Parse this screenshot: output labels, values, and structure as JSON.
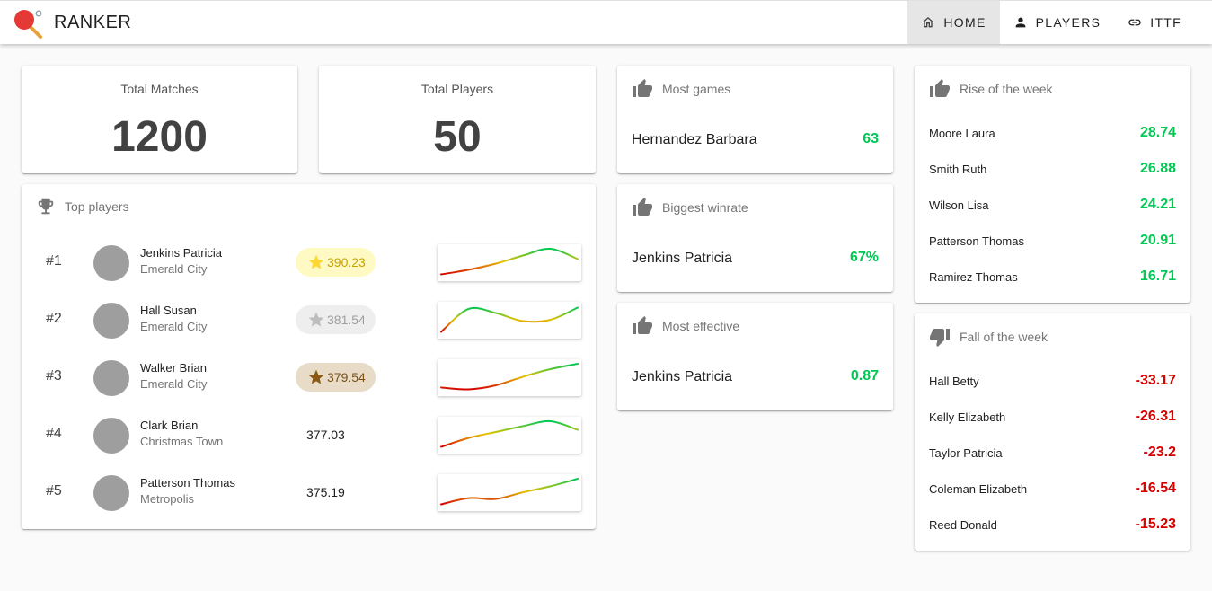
{
  "app": {
    "title": "RANKER"
  },
  "nav": [
    {
      "label": "HOME",
      "icon": "home-icon",
      "active": true
    },
    {
      "label": "PLAYERS",
      "icon": "person-icon",
      "active": false
    },
    {
      "label": "ITTF",
      "icon": "link-icon",
      "active": false
    }
  ],
  "stats": {
    "total_matches": {
      "label": "Total Matches",
      "value": "1200"
    },
    "total_players": {
      "label": "Total Players",
      "value": "50"
    }
  },
  "top_players": {
    "title": "Top players",
    "players": [
      {
        "rank": "#1",
        "name": "Jenkins Patricia",
        "city": "Emerald City",
        "score": "390.23",
        "medal": "gold",
        "trend": [
          0.05,
          0.22,
          0.45,
          0.75,
          1.0,
          0.62
        ]
      },
      {
        "rank": "#2",
        "name": "Hall Susan",
        "city": "Emerald City",
        "score": "381.54",
        "medal": "silver",
        "trend": [
          0.05,
          0.9,
          0.75,
          0.45,
          0.5,
          0.95
        ]
      },
      {
        "rank": "#3",
        "name": "Walker Brian",
        "city": "Emerald City",
        "score": "379.54",
        "medal": "bronze",
        "trend": [
          0.12,
          0.05,
          0.2,
          0.52,
          0.8,
          1.0
        ]
      },
      {
        "rank": "#4",
        "name": "Clark Brian",
        "city": "Christmas Town",
        "score": "377.03",
        "medal": "",
        "trend": [
          0.05,
          0.38,
          0.6,
          0.82,
          1.0,
          0.68
        ]
      },
      {
        "rank": "#5",
        "name": "Patterson Thomas",
        "city": "Metropolis",
        "score": "375.19",
        "medal": "",
        "trend": [
          0.05,
          0.28,
          0.25,
          0.5,
          0.72,
          1.0
        ]
      }
    ]
  },
  "awards": [
    {
      "title": "Most games",
      "player": "Hernandez Barbara",
      "value": "63"
    },
    {
      "title": "Biggest winrate",
      "player": "Jenkins Patricia",
      "value": "67%"
    },
    {
      "title": "Most effective",
      "player": "Jenkins Patricia",
      "value": "0.87"
    }
  ],
  "rise": {
    "title": "Rise of the week",
    "rows": [
      {
        "name": "Moore Laura",
        "value": "28.74"
      },
      {
        "name": "Smith Ruth",
        "value": "26.88"
      },
      {
        "name": "Wilson Lisa",
        "value": "24.21"
      },
      {
        "name": "Patterson Thomas",
        "value": "20.91"
      },
      {
        "name": "Ramirez Thomas",
        "value": "16.71"
      }
    ]
  },
  "fall": {
    "title": "Fall of the week",
    "rows": [
      {
        "name": "Hall Betty",
        "value": "-33.17"
      },
      {
        "name": "Kelly Elizabeth",
        "value": "-26.31"
      },
      {
        "name": "Taylor Patricia",
        "value": "-23.2"
      },
      {
        "name": "Coleman Elizabeth",
        "value": "-16.54"
      },
      {
        "name": "Reed Donald",
        "value": "-15.23"
      }
    ]
  },
  "colors": {
    "positive": "#00c853",
    "negative": "#d50000",
    "gold_bg": "#fff9c4",
    "gold_star": "#fdd835",
    "gold_text": "#c8a200",
    "silver_bg": "#eeeeee",
    "silver_star": "#bdbdbd",
    "silver_text": "#9e9e9e",
    "bronze_bg": "#e8dcc8",
    "bronze_star": "#8a5a14",
    "bronze_text": "#7a4f12"
  }
}
